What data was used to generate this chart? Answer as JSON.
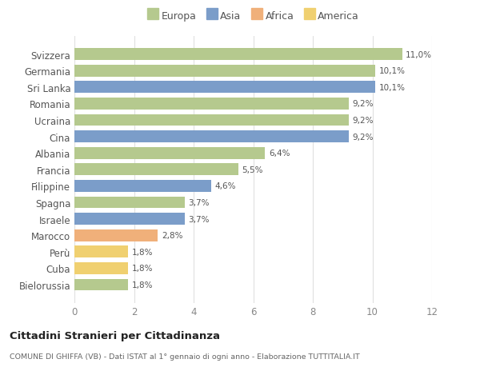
{
  "categories": [
    "Svizzera",
    "Germania",
    "Sri Lanka",
    "Romania",
    "Ucraina",
    "Cina",
    "Albania",
    "Francia",
    "Filippine",
    "Spagna",
    "Israele",
    "Marocco",
    "Perù",
    "Cuba",
    "Bielorussia"
  ],
  "values": [
    11.0,
    10.1,
    10.1,
    9.2,
    9.2,
    9.2,
    6.4,
    5.5,
    4.6,
    3.7,
    3.7,
    2.8,
    1.8,
    1.8,
    1.8
  ],
  "colors": [
    "#b5c98e",
    "#b5c98e",
    "#7b9dc9",
    "#b5c98e",
    "#b5c98e",
    "#7b9dc9",
    "#b5c98e",
    "#b5c98e",
    "#7b9dc9",
    "#b5c98e",
    "#7b9dc9",
    "#f0b07a",
    "#f0d070",
    "#f0d070",
    "#b5c98e"
  ],
  "labels": [
    "11,0%",
    "10,1%",
    "10,1%",
    "9,2%",
    "9,2%",
    "9,2%",
    "6,4%",
    "5,5%",
    "4,6%",
    "3,7%",
    "3,7%",
    "2,8%",
    "1,8%",
    "1,8%",
    "1,8%"
  ],
  "legend": [
    {
      "label": "Europa",
      "color": "#b5c98e"
    },
    {
      "label": "Asia",
      "color": "#7b9dc9"
    },
    {
      "label": "Africa",
      "color": "#f0b07a"
    },
    {
      "label": "America",
      "color": "#f0d070"
    }
  ],
  "xlim": [
    0,
    12
  ],
  "xticks": [
    0,
    2,
    4,
    6,
    8,
    10,
    12
  ],
  "title": "Cittadini Stranieri per Cittadinanza",
  "subtitle": "COMUNE DI GHIFFA (VB) - Dati ISTAT al 1° gennaio di ogni anno - Elaborazione TUTTITALIA.IT",
  "grid_color": "#e0e0e0",
  "background_color": "#ffffff",
  "bar_height": 0.72
}
